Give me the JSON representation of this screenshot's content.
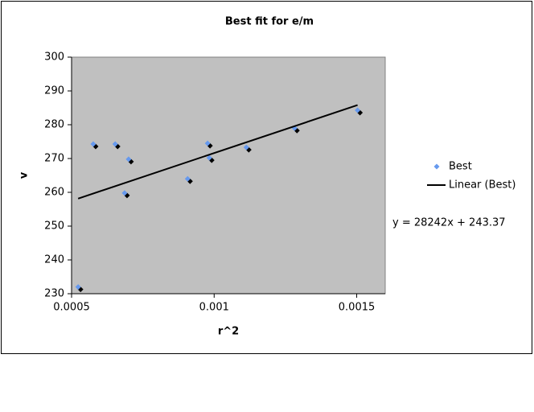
{
  "chart_data": {
    "type": "scatter",
    "title": "Best fit for e/m",
    "xlabel": "r^2",
    "ylabel": "v",
    "series": [
      {
        "name": "Best",
        "color": "#6699ee",
        "x": [
          0.000523,
          0.000576,
          0.000653,
          0.000686,
          0.0007,
          0.000907,
          0.000977,
          0.000983,
          0.001113,
          0.001282,
          0.001503
        ],
        "values": [
          232,
          274.3,
          274.3,
          259.8,
          269.8,
          264,
          274.5,
          270.2,
          273.3,
          279,
          284.3
        ]
      }
    ],
    "trendline": {
      "name": "Linear (Best)",
      "color": "#000000",
      "slope": 28242,
      "intercept": 243.37,
      "label": "y = 28242x + 243.37"
    },
    "xlim": [
      0.0005,
      0.0016
    ],
    "xticks": [
      0.0005,
      0.001,
      0.0015
    ],
    "ylim": [
      230,
      300
    ],
    "yticks": [
      230,
      240,
      250,
      260,
      270,
      280,
      290,
      300
    ],
    "grid": false,
    "legend": "right"
  }
}
